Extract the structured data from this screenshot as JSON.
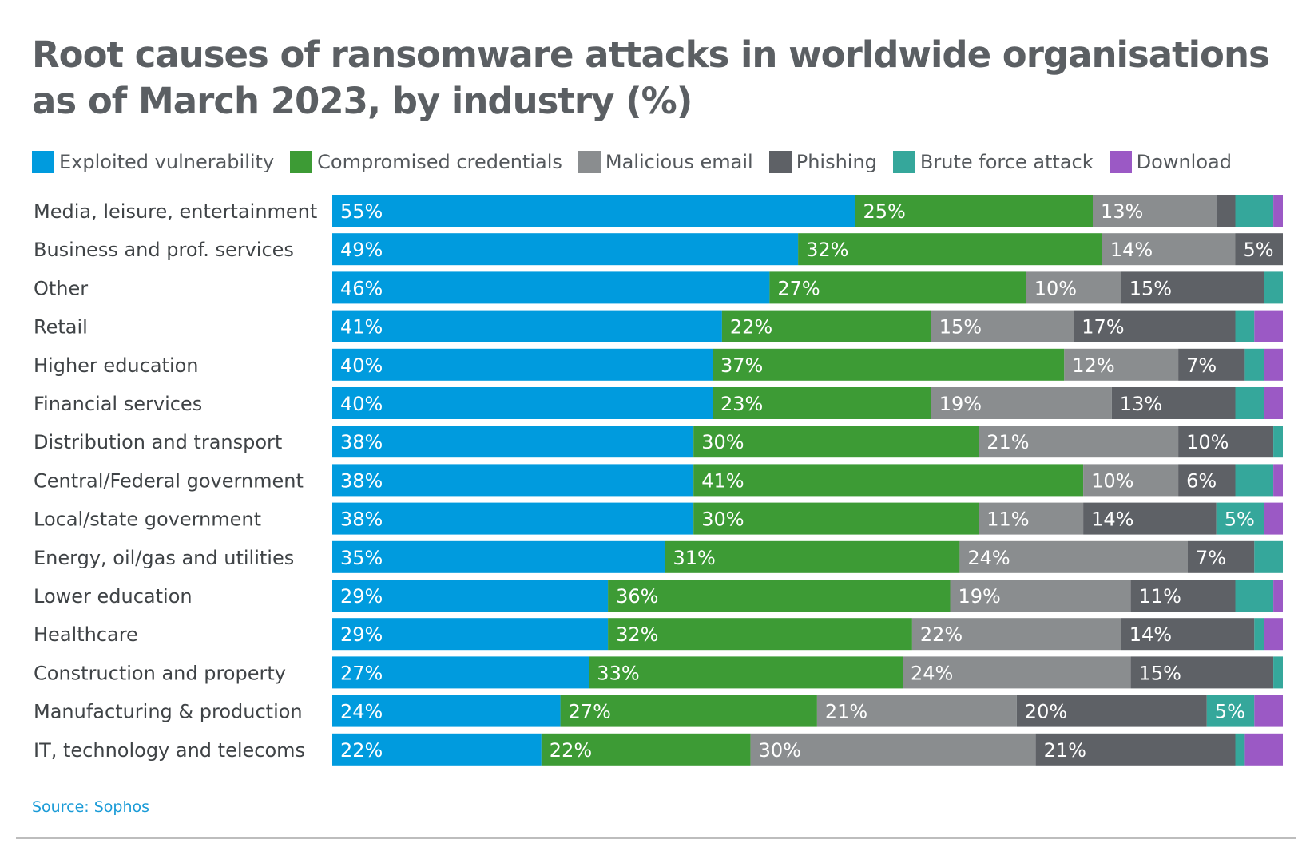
{
  "chart_data": {
    "type": "bar",
    "orientation": "horizontal",
    "stacked": true,
    "title": "Root causes of ransomware attacks in worldwide organisations as of March 2023, by industry (%)",
    "source": "Source: Sophos",
    "legend_position": "top",
    "categories": [
      "Media, leisure, entertainment",
      "Business and prof. services",
      "Other",
      "Retail",
      "Higher education",
      "Financial services",
      "Distribution and transport",
      "Central/Federal government",
      "Local/state government",
      "Energy, oil/gas and utilities",
      "Lower education",
      "Healthcare",
      "Construction and property",
      "Manufacturing & production",
      "IT, technology and telecoms"
    ],
    "series": [
      {
        "name": "Exploited vulnerability",
        "color": "#009bde",
        "values": [
          55,
          49,
          46,
          41,
          40,
          40,
          38,
          38,
          38,
          35,
          29,
          29,
          27,
          24,
          22
        ]
      },
      {
        "name": "Compromised credentials",
        "color": "#3d9b35",
        "values": [
          25,
          32,
          27,
          22,
          37,
          23,
          30,
          41,
          30,
          31,
          36,
          32,
          33,
          27,
          22
        ]
      },
      {
        "name": "Malicious email",
        "color": "#8a8d8f",
        "values": [
          13,
          14,
          10,
          15,
          12,
          19,
          21,
          10,
          11,
          24,
          19,
          22,
          24,
          21,
          30
        ]
      },
      {
        "name": "Phishing",
        "color": "#5e6166",
        "values": [
          2,
          5,
          15,
          17,
          7,
          13,
          10,
          6,
          14,
          7,
          11,
          14,
          15,
          20,
          21
        ]
      },
      {
        "name": "Brute force attack",
        "color": "#35a79b",
        "values": [
          4,
          0,
          2,
          2,
          2,
          3,
          1,
          4,
          5,
          3,
          4,
          1,
          1,
          5,
          1
        ]
      },
      {
        "name": "Download",
        "color": "#9b59c5",
        "values": [
          1,
          0,
          0,
          3,
          2,
          2,
          0,
          1,
          2,
          0,
          1,
          2,
          0,
          3,
          4
        ]
      }
    ],
    "label_threshold": 5,
    "xlim": [
      0,
      100
    ]
  }
}
